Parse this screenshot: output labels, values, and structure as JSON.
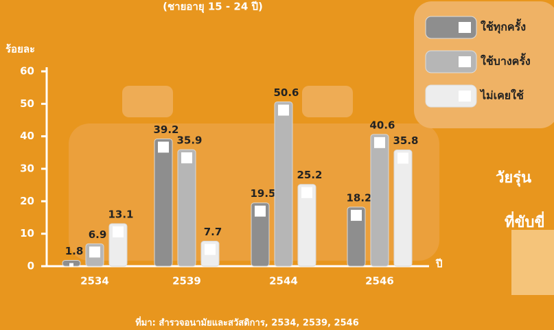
{
  "chart_data": {
    "type": "bar",
    "title": "(ชายอายุ 15 - 24 ปี)",
    "y_label": "ร้อยละ",
    "x_label": "ปี",
    "source": "ที่มา: สำรวจอนามัยและสวัสดิการ, 2534, 2539, 2546",
    "side_text": [
      "วัยรุ่น",
      "ที่ขับขี่"
    ],
    "categories": [
      "2534",
      "2539",
      "2544",
      "2546"
    ],
    "series": [
      {
        "name": "ใช้ทุกครั้ง",
        "color": "#8e8e8e",
        "values": [
          1.8,
          39.2,
          19.5,
          18.2
        ]
      },
      {
        "name": "ใช้บางครั้ง",
        "color": "#b6b6b6",
        "values": [
          6.9,
          35.9,
          50.6,
          40.6
        ]
      },
      {
        "name": "ไม่เคยใช้",
        "color": "#ededed",
        "values": [
          13.1,
          7.7,
          25.2,
          35.8
        ]
      }
    ],
    "ylim": [
      0,
      60
    ],
    "yticks": [
      0,
      10,
      20,
      30,
      40,
      50,
      60
    ]
  }
}
